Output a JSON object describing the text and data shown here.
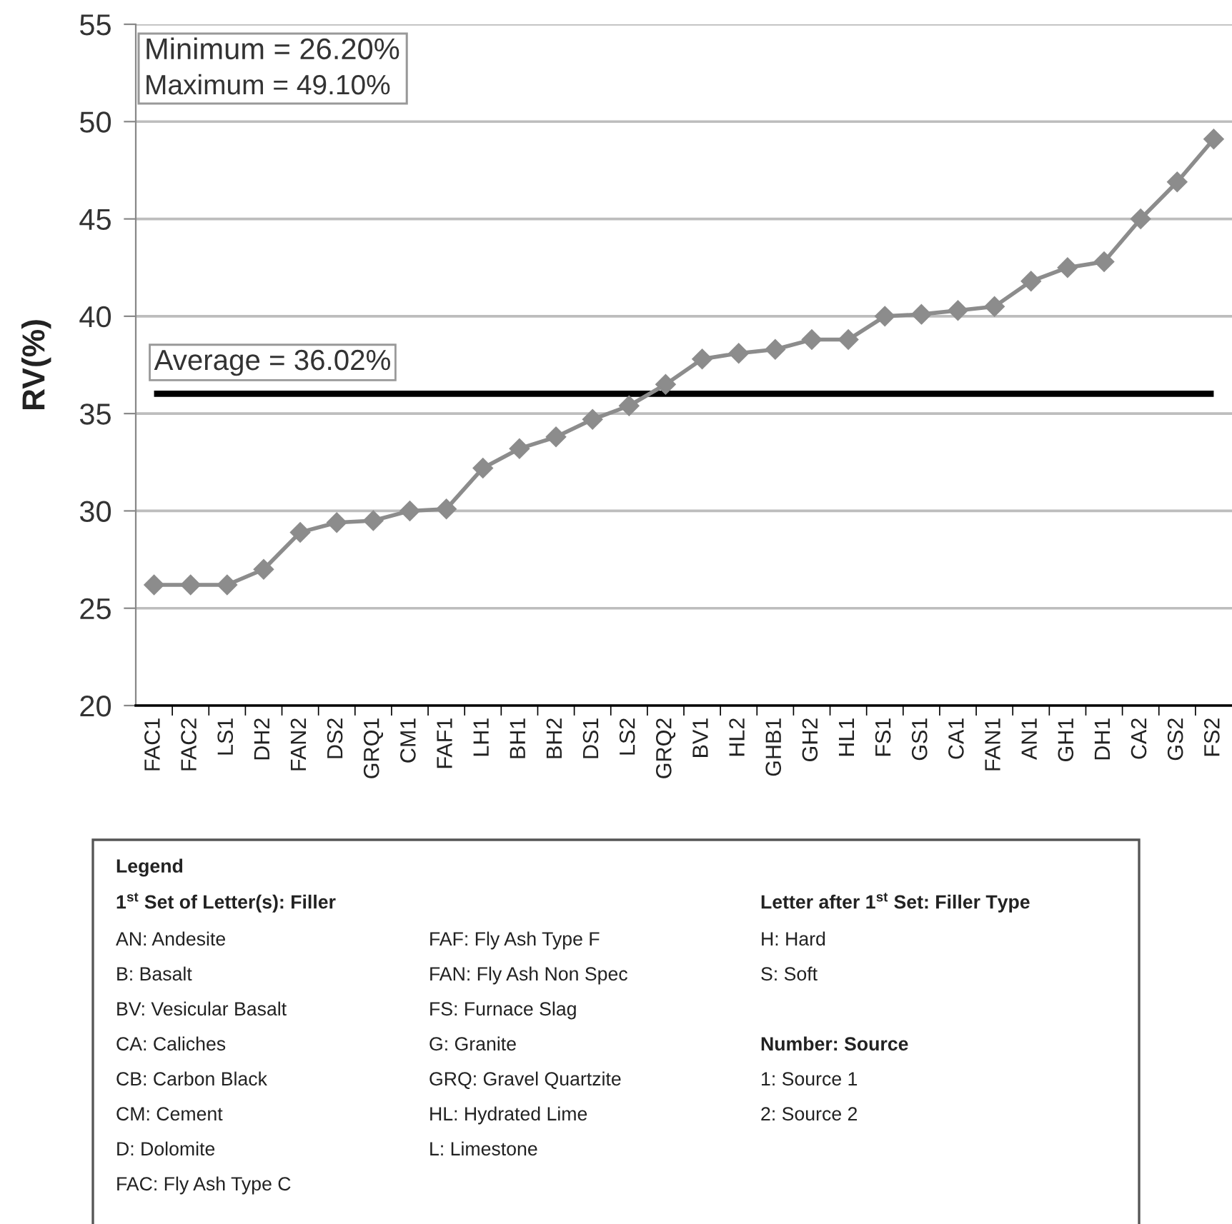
{
  "chart_data": {
    "type": "line",
    "ylabel": "RV(%)",
    "categories": [
      "FAC1",
      "FAC2",
      "LS1",
      "DH2",
      "FAN2",
      "DS2",
      "GRQ1",
      "CM1",
      "FAF1",
      "LH1",
      "BH1",
      "BH2",
      "DS1",
      "LS2",
      "GRQ2",
      "BV1",
      "HL2",
      "GHB1",
      "GH2",
      "HL1",
      "FS1",
      "GS1",
      "CA1",
      "FAN1",
      "AN1",
      "GH1",
      "DH1",
      "CA2",
      "GS2",
      "FS2"
    ],
    "series": [
      {
        "color": "#8c8c8c",
        "values": [
          26.2,
          26.2,
          26.2,
          27.0,
          28.9,
          29.4,
          29.5,
          30.0,
          30.1,
          32.2,
          33.2,
          33.8,
          34.7,
          35.4,
          36.5,
          37.8,
          38.1,
          38.3,
          38.8,
          38.8,
          40.0,
          40.1,
          40.3,
          40.5,
          41.8,
          42.5,
          42.8,
          45.0,
          46.9,
          49.1
        ]
      }
    ],
    "ylim": [
      20,
      55
    ],
    "yticks": [
      20,
      25,
      30,
      35,
      40,
      45,
      50,
      55
    ],
    "grid": "y",
    "marker": "diamond",
    "line_style": "solid",
    "ref_lines": [
      {
        "axis": "y",
        "value": 36.02,
        "label": "Average = 36.02%",
        "color": "#000000"
      }
    ],
    "annotations": [
      "Minimum = 26.20%",
      "Maximum = 49.10%",
      "Legend",
      "1$^{st}$ Set of Letter(s): Filler",
      "AN: Andesite",
      "B: Basalt",
      "BV: Vesicular Basalt",
      "CA: Caliches",
      "CB: Carbon Black",
      "CM: Cement",
      "D: Dolomite",
      "FAC: Fly Ash Type C",
      "FAF: Fly Ash Type F",
      "FAN: Fly Ash Non Spec",
      "FS: Furnace Slag",
      "G: Granite",
      "GRQ: Gravel Quartzite",
      "HL: Hydrated Lime",
      "L: Limestone",
      "Letter after 1$^{st}$ Set: Filler Type",
      "H: Hard",
      "S: Soft",
      "Number: Source",
      "1: Source 1",
      "2: Source 2"
    ]
  }
}
